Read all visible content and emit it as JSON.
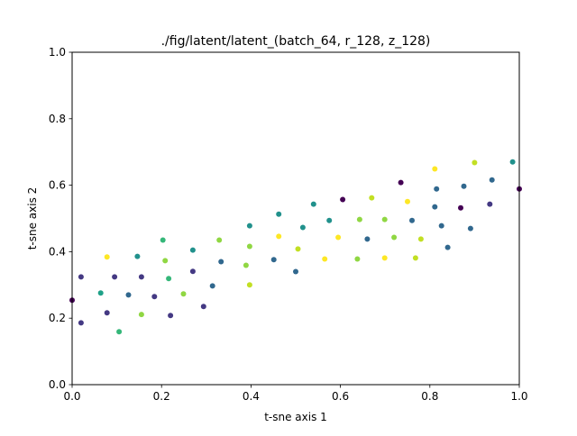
{
  "chart_data": {
    "type": "scatter",
    "title": "./fig/latent/latent_(batch_64, r_128, z_128)",
    "xlabel": "t-sne axis 1",
    "ylabel": "t-sne axis 2",
    "xlim": [
      0.0,
      1.0
    ],
    "ylim": [
      0.0,
      1.0
    ],
    "x_ticks": [
      "0.0",
      "0.2",
      "0.4",
      "0.6",
      "0.8",
      "1.0"
    ],
    "y_ticks": [
      "0.0",
      "0.2",
      "0.4",
      "0.6",
      "0.8",
      "1.0"
    ],
    "grid": false,
    "colormap": "viridis",
    "points": [
      {
        "x": 0.0,
        "y": 0.254,
        "color": "#440154"
      },
      {
        "x": 0.02,
        "y": 0.324,
        "color": "#443983"
      },
      {
        "x": 0.02,
        "y": 0.186,
        "color": "#443983"
      },
      {
        "x": 0.064,
        "y": 0.276,
        "color": "#1fa188"
      },
      {
        "x": 0.078,
        "y": 0.216,
        "color": "#443983"
      },
      {
        "x": 0.078,
        "y": 0.384,
        "color": "#fde725"
      },
      {
        "x": 0.095,
        "y": 0.324,
        "color": "#443983"
      },
      {
        "x": 0.105,
        "y": 0.159,
        "color": "#35b779"
      },
      {
        "x": 0.126,
        "y": 0.27,
        "color": "#31688e"
      },
      {
        "x": 0.146,
        "y": 0.386,
        "color": "#21918c"
      },
      {
        "x": 0.155,
        "y": 0.324,
        "color": "#443983"
      },
      {
        "x": 0.155,
        "y": 0.211,
        "color": "#90d743"
      },
      {
        "x": 0.184,
        "y": 0.265,
        "color": "#443983"
      },
      {
        "x": 0.203,
        "y": 0.435,
        "color": "#35b779"
      },
      {
        "x": 0.208,
        "y": 0.373,
        "color": "#90d743"
      },
      {
        "x": 0.216,
        "y": 0.319,
        "color": "#35b779"
      },
      {
        "x": 0.22,
        "y": 0.208,
        "color": "#443983"
      },
      {
        "x": 0.249,
        "y": 0.273,
        "color": "#90d743"
      },
      {
        "x": 0.27,
        "y": 0.405,
        "color": "#21918c"
      },
      {
        "x": 0.27,
        "y": 0.341,
        "color": "#443983"
      },
      {
        "x": 0.294,
        "y": 0.235,
        "color": "#443983"
      },
      {
        "x": 0.314,
        "y": 0.297,
        "color": "#31688e"
      },
      {
        "x": 0.329,
        "y": 0.435,
        "color": "#90d743"
      },
      {
        "x": 0.333,
        "y": 0.37,
        "color": "#31688e"
      },
      {
        "x": 0.389,
        "y": 0.359,
        "color": "#90d743"
      },
      {
        "x": 0.397,
        "y": 0.478,
        "color": "#21918c"
      },
      {
        "x": 0.397,
        "y": 0.416,
        "color": "#90d743"
      },
      {
        "x": 0.397,
        "y": 0.3,
        "color": "#c2df23"
      },
      {
        "x": 0.451,
        "y": 0.376,
        "color": "#31688e"
      },
      {
        "x": 0.462,
        "y": 0.513,
        "color": "#21918c"
      },
      {
        "x": 0.462,
        "y": 0.446,
        "color": "#fde725"
      },
      {
        "x": 0.5,
        "y": 0.34,
        "color": "#31688e"
      },
      {
        "x": 0.505,
        "y": 0.408,
        "color": "#c2df23"
      },
      {
        "x": 0.516,
        "y": 0.473,
        "color": "#21918c"
      },
      {
        "x": 0.54,
        "y": 0.543,
        "color": "#21918c"
      },
      {
        "x": 0.565,
        "y": 0.378,
        "color": "#fde725"
      },
      {
        "x": 0.575,
        "y": 0.494,
        "color": "#21918c"
      },
      {
        "x": 0.595,
        "y": 0.443,
        "color": "#fde725"
      },
      {
        "x": 0.605,
        "y": 0.557,
        "color": "#440154"
      },
      {
        "x": 0.638,
        "y": 0.378,
        "color": "#90d743"
      },
      {
        "x": 0.643,
        "y": 0.497,
        "color": "#90d743"
      },
      {
        "x": 0.66,
        "y": 0.438,
        "color": "#31688e"
      },
      {
        "x": 0.67,
        "y": 0.562,
        "color": "#c2df23"
      },
      {
        "x": 0.699,
        "y": 0.381,
        "color": "#fde725"
      },
      {
        "x": 0.699,
        "y": 0.497,
        "color": "#90d743"
      },
      {
        "x": 0.72,
        "y": 0.443,
        "color": "#90d743"
      },
      {
        "x": 0.735,
        "y": 0.608,
        "color": "#440154"
      },
      {
        "x": 0.75,
        "y": 0.551,
        "color": "#fde725"
      },
      {
        "x": 0.76,
        "y": 0.494,
        "color": "#31688e"
      },
      {
        "x": 0.768,
        "y": 0.381,
        "color": "#c2df23"
      },
      {
        "x": 0.78,
        "y": 0.438,
        "color": "#c2df23"
      },
      {
        "x": 0.811,
        "y": 0.649,
        "color": "#fde725"
      },
      {
        "x": 0.811,
        "y": 0.535,
        "color": "#31688e"
      },
      {
        "x": 0.815,
        "y": 0.589,
        "color": "#31688e"
      },
      {
        "x": 0.826,
        "y": 0.478,
        "color": "#31688e"
      },
      {
        "x": 0.84,
        "y": 0.413,
        "color": "#31688e"
      },
      {
        "x": 0.869,
        "y": 0.532,
        "color": "#440154"
      },
      {
        "x": 0.876,
        "y": 0.597,
        "color": "#31688e"
      },
      {
        "x": 0.891,
        "y": 0.47,
        "color": "#31688e"
      },
      {
        "x": 0.9,
        "y": 0.668,
        "color": "#c2df23"
      },
      {
        "x": 0.934,
        "y": 0.543,
        "color": "#443983"
      },
      {
        "x": 0.939,
        "y": 0.616,
        "color": "#31688e"
      },
      {
        "x": 0.985,
        "y": 0.67,
        "color": "#21918c"
      },
      {
        "x": 1.0,
        "y": 0.589,
        "color": "#440154"
      }
    ]
  }
}
